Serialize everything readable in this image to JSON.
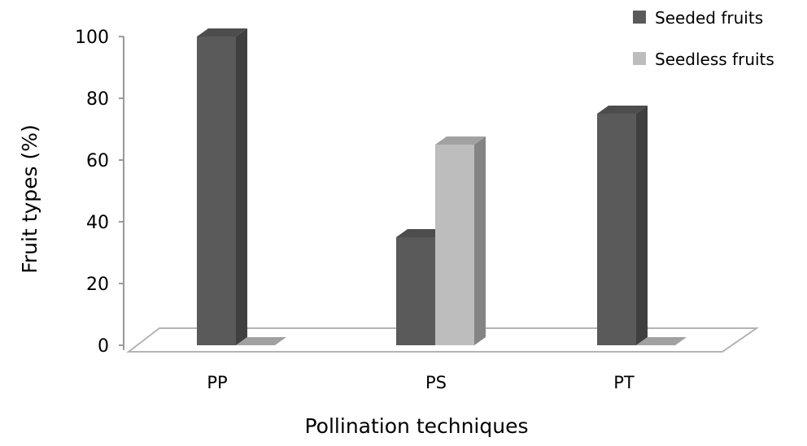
{
  "chart_data": {
    "type": "bar",
    "style": "3d-clustered",
    "xlabel": "Pollination techniques",
    "ylabel": "Fruit types (%)",
    "ylim": [
      0,
      100
    ],
    "yticks": [
      0,
      20,
      40,
      60,
      80,
      100
    ],
    "categories": [
      "PP",
      "PS",
      "PT"
    ],
    "series": [
      {
        "name": "Seeded fruits",
        "color": "#5a5a5a",
        "values": [
          100,
          35,
          75
        ]
      },
      {
        "name": "Seedless fruits",
        "color": "#bdbdbd",
        "values": [
          0,
          65,
          0
        ]
      }
    ],
    "grid": false,
    "legend": "top-right"
  }
}
